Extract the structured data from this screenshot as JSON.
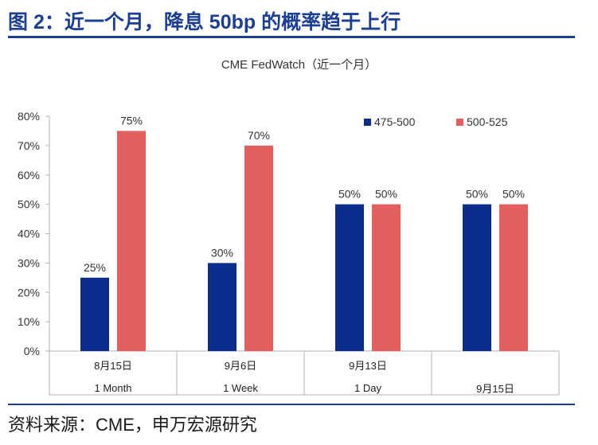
{
  "figure": {
    "title": "图 2：近一个月，降息 50bp 的概率趋于上行",
    "source": "资料来源：CME，申万宏源研究"
  },
  "chart_data": {
    "type": "bar",
    "title": "CME FedWatch（近一个月）",
    "categories": [
      "8月15日",
      "9月6日",
      "9月13日",
      "9月15日"
    ],
    "sublabels": [
      "1 Month",
      "1 Week",
      "1 Day",
      ""
    ],
    "series": [
      {
        "name": "475-500",
        "color": "#0b2d8c",
        "values": [
          25,
          30,
          50,
          50
        ],
        "labels": [
          "25%",
          "30%",
          "50%",
          "50%"
        ]
      },
      {
        "name": "500-525",
        "color": "#e35f60",
        "values": [
          75,
          70,
          50,
          50
        ],
        "labels": [
          "75%",
          "70%",
          "50%",
          "50%"
        ]
      }
    ],
    "ylim": [
      0,
      80
    ],
    "yticks": [
      0,
      10,
      20,
      30,
      40,
      50,
      60,
      70,
      80
    ],
    "ytick_labels": [
      "0%",
      "10%",
      "20%",
      "30%",
      "40%",
      "50%",
      "60%",
      "70%",
      "80%"
    ],
    "grid": false,
    "legend_position": "top-right"
  }
}
